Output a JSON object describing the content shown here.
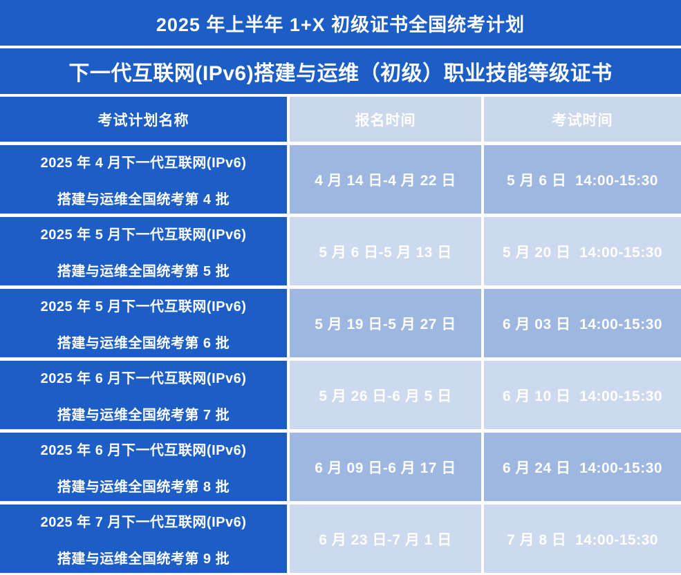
{
  "title": "2025 年上半年 1+X 初级证书全国统考计划",
  "subtitle": "下一代互联网(IPv6)搭建与运维（初级）职业技能等级证书",
  "table": {
    "columns": [
      "考试计划名称",
      "报名时间",
      "考试时间"
    ],
    "rows": [
      {
        "plan_line1": "2025 年 4 月下一代互联网(IPv6)",
        "plan_line2": "搭建与运维全国统考第 4 批",
        "registration_period": "4 月 14 日-4 月 22 日",
        "exam_time": "5 月 6 日  14:00-15:30"
      },
      {
        "plan_line1": "2025 年 5 月下一代互联网(IPv6)",
        "plan_line2": "搭建与运维全国统考第 5 批",
        "registration_period": "5 月 6 日-5 月 13 日",
        "exam_time": "5 月 20 日  14:00-15:30"
      },
      {
        "plan_line1": "2025 年 5 月下一代互联网(IPv6)",
        "plan_line2": "搭建与运维全国统考第 6 批",
        "registration_period": "5 月 19 日-5 月 27 日",
        "exam_time": "6 月 03 日  14:00-15:30"
      },
      {
        "plan_line1": "2025 年 6 月下一代互联网(IPv6)",
        "plan_line2": "搭建与运维全国统考第 7 批",
        "registration_period": "5 月 26 日-6 月 5 日",
        "exam_time": "6 月 10 日  14:00-15:30"
      },
      {
        "plan_line1": "2025 年 6 月下一代互联网(IPv6)",
        "plan_line2": "搭建与运维全国统考第 8 批",
        "registration_period": "6 月 09 日-6 月 17 日",
        "exam_time": "6 月 24 日  14:00-15:30"
      },
      {
        "plan_line1": "2025 年 7 月下一代互联网(IPv6)",
        "plan_line2": "搭建与运维全国统考第 9 批",
        "registration_period": "6 月 23 日-7 月 1 日",
        "exam_time": "7 月 8 日  14:00-15:30"
      }
    ]
  },
  "colors": {
    "header_dark_blue": "#1d5ec6",
    "column_header_light_blue": "#cbd8ec",
    "row_medium_blue": "#9db7e0",
    "row_light_blue": "#cdd9ee",
    "text_white": "#ffffff",
    "divider_white": "#ffffff"
  }
}
